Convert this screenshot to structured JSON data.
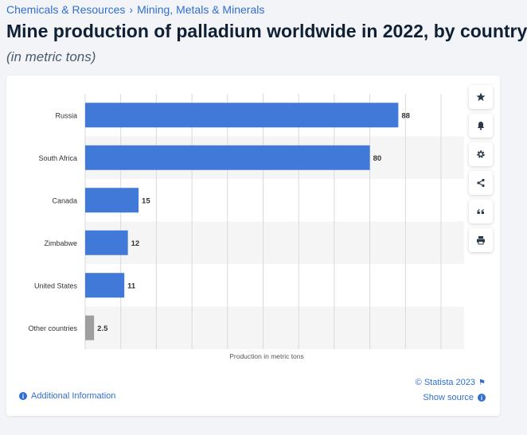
{
  "breadcrumb": {
    "category": "Chemicals & Resources",
    "separator": "›",
    "subcategory": "Mining, Metals & Minerals"
  },
  "title": "Mine production of palladium worldwide in 2022, by country",
  "subtitle": "(in metric tons)",
  "footer": {
    "copyright": "© Statista 2023",
    "additional_info": "Additional Information",
    "show_source": "Show source"
  },
  "colors": {
    "bar": "#4079d8",
    "bar_other": "#9e9e9e",
    "stripe": "#f5f5f5",
    "grid": "#d9d9d9"
  },
  "chart_data": {
    "type": "bar",
    "orientation": "horizontal",
    "title": "Mine production of palladium worldwide in 2022, by country",
    "xlabel": "Production in metric tons",
    "ylabel": "",
    "categories": [
      "Russia",
      "South Africa",
      "Canada",
      "Zimbabwe",
      "United States",
      "Other countries"
    ],
    "values": [
      88,
      80,
      15,
      12,
      11,
      2.5
    ],
    "value_labels": [
      "88",
      "80",
      "15",
      "12",
      "11",
      "2.5"
    ],
    "highlight_gray": [
      "Other countries"
    ],
    "xlim": [
      0,
      100
    ],
    "grid": true,
    "legend": "none"
  }
}
